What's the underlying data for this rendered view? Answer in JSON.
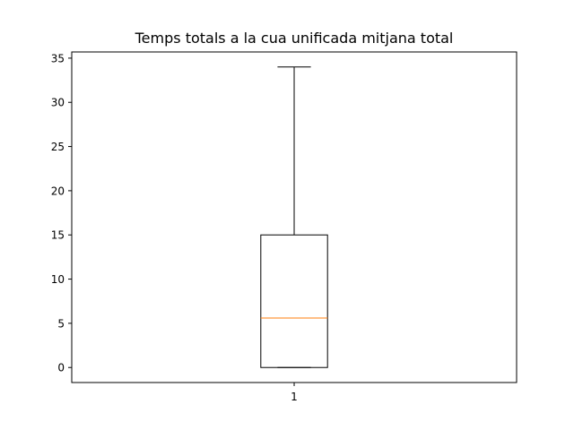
{
  "chart_data": {
    "type": "box",
    "title": "Temps totals a la cua unificada mitjana total",
    "xlabel": "",
    "ylabel": "",
    "categories": [
      "1"
    ],
    "ylim": [
      -1.7,
      35.7
    ],
    "yticks": [
      0,
      5,
      10,
      15,
      20,
      25,
      30,
      35
    ],
    "boxes": [
      {
        "category": "1",
        "whisker_low": 0,
        "q1": 0,
        "median": 5.6,
        "q3": 15,
        "whisker_high": 34
      }
    ],
    "grid": false,
    "colors": {
      "box": "#000000",
      "median": "#ff7f0e",
      "axes": "#000000"
    }
  }
}
